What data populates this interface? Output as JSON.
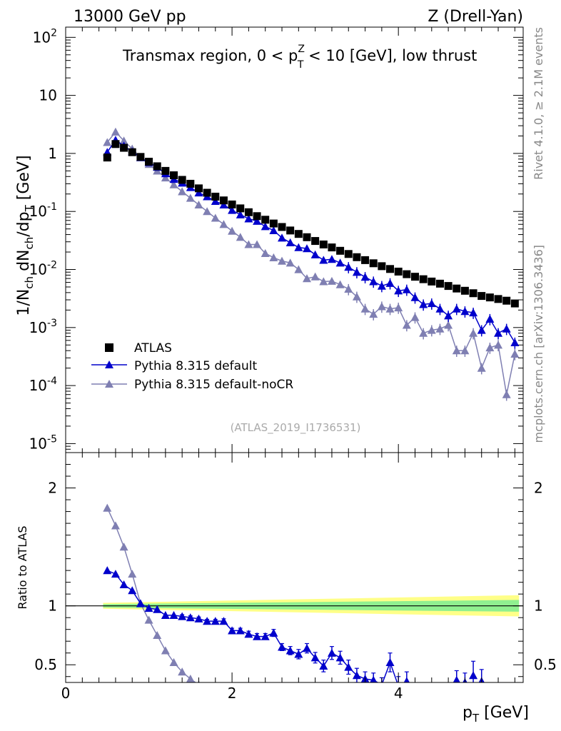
{
  "header": {
    "left": "13000 GeV pp",
    "right": "Z (Drell-Yan)"
  },
  "side_labels": {
    "rivet": "Rivet 4.1.0, ≥ 2.1M events",
    "mcplots": "mcplots.cern.ch [arXiv:1306.3436]"
  },
  "colors": {
    "atlas": "#000000",
    "default": "#0000cc",
    "noCR": "#7f7fb2",
    "band_inner": "#90f090",
    "band_outer": "#ffff88"
  },
  "chart_data": [
    {
      "type": "scatter",
      "panel": "main",
      "title_prefix": "Transmax region, 0 < p",
      "title_sup": "Z",
      "title_sub": "T",
      "title_suffix": " < 10 [GeV], low thrust",
      "ylabel": "1/N_ch dN_ch/dp_T [GeV]",
      "yscale": "log",
      "ylim": [
        7e-06,
        150
      ],
      "xlim": [
        0,
        5.5
      ],
      "ytick_labels": [
        "10^-5",
        "10^-4",
        "10^-3",
        "10^-2",
        "10^-1",
        "1",
        "10",
        "10^2"
      ],
      "analysis_id": "(ATLAS_2019_I1736531)",
      "legend": [
        "ATLAS",
        "Pythia 8.315 default",
        "Pythia 8.315 default-noCR"
      ],
      "x": [
        0.5,
        0.6,
        0.7,
        0.8,
        0.9,
        1.0,
        1.1,
        1.2,
        1.3,
        1.4,
        1.5,
        1.6,
        1.7,
        1.8,
        1.9,
        2.0,
        2.1,
        2.2,
        2.3,
        2.4,
        2.5,
        2.6,
        2.7,
        2.8,
        2.9,
        3.0,
        3.1,
        3.2,
        3.3,
        3.4,
        3.5,
        3.6,
        3.7,
        3.8,
        3.9,
        4.0,
        4.1,
        4.2,
        4.3,
        4.4,
        4.5,
        4.6,
        4.7,
        4.8,
        4.9,
        5.0,
        5.1,
        5.2,
        5.3,
        5.4
      ],
      "series": [
        {
          "name": "ATLAS",
          "marker": "square",
          "values": [
            0.85,
            1.45,
            1.25,
            1.05,
            0.87,
            0.72,
            0.6,
            0.5,
            0.42,
            0.35,
            0.3,
            0.25,
            0.21,
            0.18,
            0.155,
            0.132,
            0.113,
            0.097,
            0.083,
            0.072,
            0.062,
            0.054,
            0.047,
            0.041,
            0.036,
            0.031,
            0.027,
            0.024,
            0.021,
            0.0185,
            0.0163,
            0.0145,
            0.0128,
            0.0114,
            0.0102,
            0.0092,
            0.0083,
            0.0075,
            0.0068,
            0.0062,
            0.0057,
            0.0052,
            0.0047,
            0.0043,
            0.0039,
            0.0035,
            0.0033,
            0.0031,
            0.0029,
            0.0026
          ]
        },
        {
          "name": "Pythia 8.315 default",
          "marker": "triangle",
          "values": [
            1.05,
            1.7,
            1.35,
            1.07,
            0.85,
            0.7,
            0.58,
            0.45,
            0.36,
            0.31,
            0.26,
            0.21,
            0.18,
            0.15,
            0.13,
            0.105,
            0.088,
            0.075,
            0.068,
            0.055,
            0.047,
            0.035,
            0.029,
            0.024,
            0.023,
            0.018,
            0.0145,
            0.015,
            0.013,
            0.011,
            0.009,
            0.0074,
            0.0062,
            0.0052,
            0.0058,
            0.0043,
            0.0045,
            0.0033,
            0.0025,
            0.0026,
            0.0021,
            0.0016,
            0.0021,
            0.0019,
            0.0018,
            0.0009,
            0.0014,
            0.0008,
            0.00095,
            0.00055
          ],
          "errors": [
            0,
            0,
            0,
            0,
            0,
            0,
            0,
            0,
            0,
            0,
            0,
            0,
            0,
            0,
            0,
            0,
            0,
            0,
            0,
            0,
            0,
            0,
            0,
            0,
            0,
            0,
            0,
            0,
            0,
            0,
            0,
            0,
            0,
            0,
            0,
            0,
            0,
            0,
            0,
            0,
            0,
            0,
            0,
            0,
            0,
            0,
            0,
            0,
            0,
            0
          ]
        },
        {
          "name": "Pythia 8.315 default-noCR",
          "marker": "triangle",
          "values": [
            1.55,
            2.35,
            1.65,
            1.2,
            0.85,
            0.65,
            0.5,
            0.38,
            0.29,
            0.22,
            0.17,
            0.13,
            0.1,
            0.077,
            0.06,
            0.046,
            0.036,
            0.027,
            0.027,
            0.019,
            0.016,
            0.014,
            0.013,
            0.01,
            0.007,
            0.0075,
            0.0062,
            0.0063,
            0.0055,
            0.0046,
            0.0034,
            0.0021,
            0.0017,
            0.0023,
            0.0021,
            0.0022,
            0.0011,
            0.0015,
            0.0008,
            0.0009,
            0.00095,
            0.0011,
            0.0004,
            0.0004,
            0.0008,
            0.0002,
            0.00045,
            0.0005,
            7e-05,
            0.00035
          ],
          "errors": [
            0,
            0,
            0,
            0,
            0,
            0,
            0,
            0,
            0,
            0,
            0,
            0,
            0,
            0,
            0,
            0,
            0,
            0,
            0,
            0,
            0,
            0,
            0,
            0,
            0,
            0,
            0,
            0,
            0,
            0,
            0,
            0,
            0,
            0,
            0,
            0,
            0,
            0,
            0,
            0,
            0,
            0,
            0,
            0,
            0,
            0,
            0,
            0,
            0,
            0
          ]
        }
      ]
    },
    {
      "type": "line",
      "panel": "ratio",
      "ylabel": "Ratio to ATLAS",
      "xlabel": "p_T [GeV]",
      "xlim": [
        0,
        5.5
      ],
      "ylim": [
        0.35,
        2.3
      ],
      "xtick_labels": [
        "0",
        "2",
        "4"
      ],
      "ytick_labels": [
        "0.5",
        "1",
        "2"
      ],
      "reference_line": 1.0,
      "band_inner": {
        "x": [
          0.45,
          5.45
        ],
        "half_width": [
          0.015,
          0.05
        ]
      },
      "band_outer": {
        "x": [
          0.45,
          5.45
        ],
        "half_width": [
          0.025,
          0.09
        ]
      },
      "series": [
        {
          "name": "Pythia 8.315 default",
          "x": [
            0.5,
            0.6,
            0.7,
            0.8,
            0.9,
            1.0,
            1.1,
            1.2,
            1.3,
            1.4,
            1.5,
            1.6,
            1.7,
            1.8,
            1.9,
            2.0,
            2.1,
            2.2,
            2.3,
            2.4,
            2.5,
            2.6,
            2.7,
            2.8,
            2.9,
            3.0,
            3.1,
            3.2,
            3.3,
            3.4,
            3.5,
            3.6,
            3.7,
            3.8,
            3.9,
            4.0,
            4.1,
            4.7,
            4.8,
            4.9,
            5.0
          ],
          "values": [
            1.3,
            1.27,
            1.18,
            1.13,
            1.02,
            0.98,
            0.97,
            0.92,
            0.92,
            0.91,
            0.9,
            0.89,
            0.87,
            0.87,
            0.87,
            0.79,
            0.79,
            0.76,
            0.74,
            0.74,
            0.77,
            0.65,
            0.62,
            0.59,
            0.64,
            0.56,
            0.49,
            0.6,
            0.56,
            0.48,
            0.41,
            0.38,
            0.37,
            0.33,
            0.52,
            0.32,
            0.36,
            0.37,
            0.35,
            0.41,
            0.36
          ],
          "errors": [
            0.01,
            0.01,
            0.01,
            0.01,
            0.01,
            0.01,
            0.01,
            0.01,
            0.01,
            0.015,
            0.015,
            0.015,
            0.015,
            0.015,
            0.02,
            0.02,
            0.02,
            0.025,
            0.025,
            0.025,
            0.03,
            0.03,
            0.035,
            0.04,
            0.04,
            0.045,
            0.05,
            0.055,
            0.055,
            0.06,
            0.06,
            0.06,
            0.06,
            0.06,
            0.08,
            0.08,
            0.08,
            0.08,
            0.08,
            0.12,
            0.1
          ]
        },
        {
          "name": "Pythia 8.315 default-noCR",
          "x": [
            0.5,
            0.6,
            0.7,
            0.8,
            0.9,
            1.0,
            1.1,
            1.2,
            1.3,
            1.4,
            1.5,
            1.6
          ],
          "values": [
            1.83,
            1.68,
            1.5,
            1.27,
            1.02,
            0.88,
            0.75,
            0.62,
            0.52,
            0.44,
            0.38,
            0.33
          ]
        }
      ]
    }
  ]
}
